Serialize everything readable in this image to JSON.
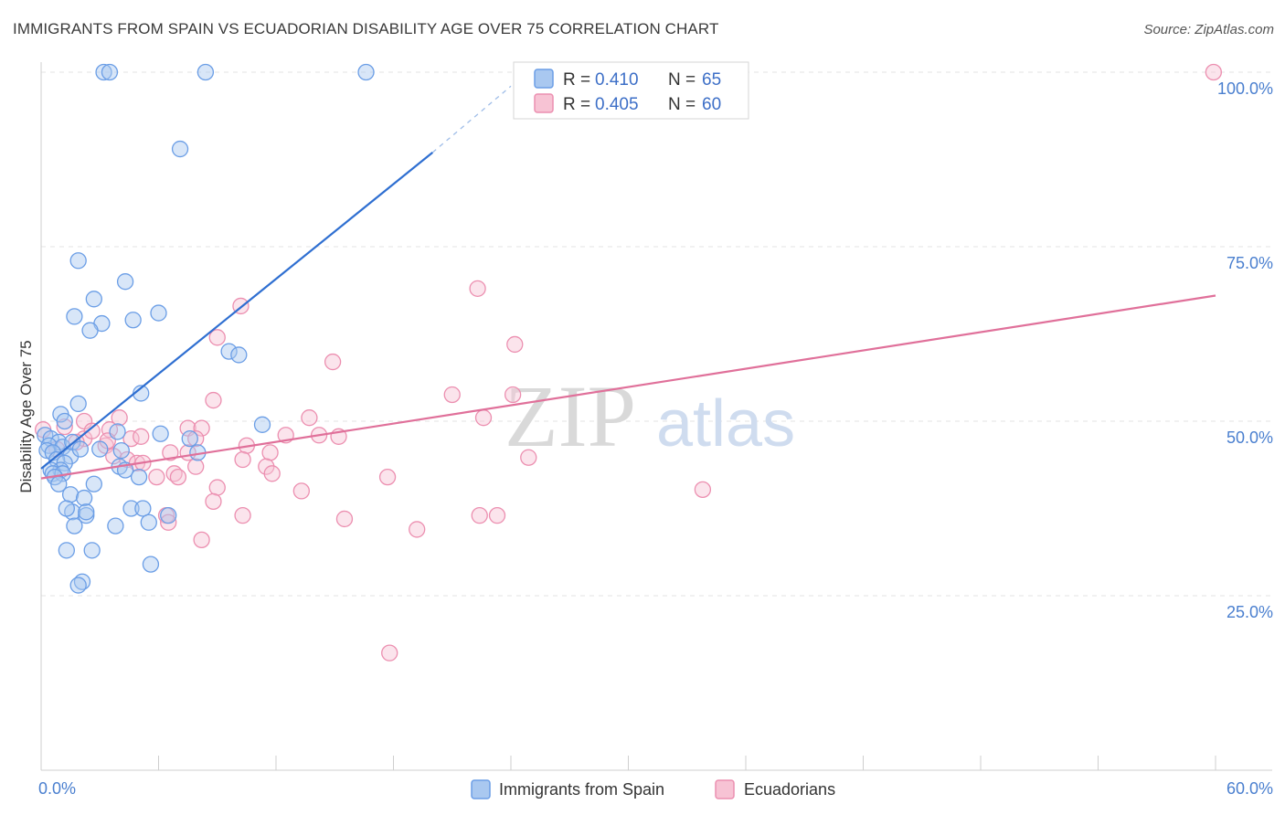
{
  "title": "IMMIGRANTS FROM SPAIN VS ECUADORIAN DISABILITY AGE OVER 75 CORRELATION CHART",
  "source": "Source: ZipAtlas.com",
  "watermark": {
    "zip": "ZIP",
    "atlas": "atlas"
  },
  "colors": {
    "blue": "#6b9ee6",
    "blue_fill": "#a9c8f0",
    "blue_line": "#2f6fd1",
    "pink": "#ec8fb0",
    "pink_fill": "#f7c3d4",
    "pink_line": "#e0709a"
  },
  "legend": {
    "r_label": "R =",
    "n_label": "N =",
    "blue": {
      "r": "0.410",
      "n": "65"
    },
    "pink": {
      "r": "0.405",
      "n": "60"
    }
  },
  "bottom_legend": {
    "blue": "Immigrants from Spain",
    "pink": "Ecuadorians"
  },
  "chart_data": {
    "type": "scatter",
    "title": "IMMIGRANTS FROM SPAIN VS ECUADORIAN DISABILITY AGE OVER 75 CORRELATION CHART",
    "xlabel": "",
    "ylabel": "Disability Age Over 75",
    "xlim": [
      0,
      60
    ],
    "ylim": [
      0,
      100
    ],
    "x_tick_labels": [
      "0.0%",
      "60.0%"
    ],
    "y_ticks": [
      25,
      50,
      75,
      100
    ],
    "y_tick_labels": [
      "25.0%",
      "50.0%",
      "75.0%",
      "100.0%"
    ],
    "grid": true,
    "series": [
      {
        "name": "Immigrants from Spain",
        "r": 0.41,
        "n": 65,
        "trend": {
          "x0": 0,
          "y0": 43.2,
          "x1": 20.0,
          "y1": 88.5,
          "dash_x1": 24.0,
          "dash_y1": 98.0
        },
        "points": [
          [
            3.2,
            100
          ],
          [
            3.5,
            100
          ],
          [
            8.4,
            100
          ],
          [
            16.6,
            100
          ],
          [
            7.1,
            89
          ],
          [
            1.9,
            73
          ],
          [
            4.3,
            70
          ],
          [
            2.7,
            67.5
          ],
          [
            1.7,
            65
          ],
          [
            3.1,
            64
          ],
          [
            4.7,
            64.5
          ],
          [
            6.0,
            65.5
          ],
          [
            2.5,
            63
          ],
          [
            9.6,
            60
          ],
          [
            10.1,
            59.5
          ],
          [
            5.1,
            54
          ],
          [
            1.9,
            52.5
          ],
          [
            1.0,
            51
          ],
          [
            1.2,
            50
          ],
          [
            11.3,
            49.5
          ],
          [
            0.2,
            48
          ],
          [
            0.5,
            47.5
          ],
          [
            0.9,
            47
          ],
          [
            0.4,
            46.5
          ],
          [
            1.1,
            46.3
          ],
          [
            0.3,
            45.8
          ],
          [
            3.0,
            46
          ],
          [
            0.6,
            45.5
          ],
          [
            1.5,
            45
          ],
          [
            0.8,
            44.5
          ],
          [
            1.2,
            44
          ],
          [
            4.0,
            43.5
          ],
          [
            1.0,
            43
          ],
          [
            0.5,
            43
          ],
          [
            0.6,
            42.5
          ],
          [
            1.1,
            42.5
          ],
          [
            0.7,
            42
          ],
          [
            4.3,
            43
          ],
          [
            5.0,
            42
          ],
          [
            0.9,
            41
          ],
          [
            2.7,
            41
          ],
          [
            1.5,
            39.5
          ],
          [
            2.2,
            39
          ],
          [
            1.6,
            37
          ],
          [
            2.3,
            36.5
          ],
          [
            1.3,
            37.5
          ],
          [
            2.3,
            37
          ],
          [
            4.6,
            37.5
          ],
          [
            5.2,
            37.5
          ],
          [
            6.5,
            36.5
          ],
          [
            1.7,
            35
          ],
          [
            5.5,
            35.5
          ],
          [
            3.8,
            35
          ],
          [
            1.3,
            31.5
          ],
          [
            2.6,
            31.5
          ],
          [
            5.6,
            29.5
          ],
          [
            2.1,
            27
          ],
          [
            1.9,
            26.5
          ],
          [
            7.6,
            47.5
          ],
          [
            3.9,
            48.5
          ],
          [
            1.6,
            47
          ],
          [
            2.0,
            46
          ],
          [
            4.1,
            45.8
          ],
          [
            6.1,
            48.2
          ],
          [
            8.0,
            45.5
          ]
        ]
      },
      {
        "name": "Ecuadorians",
        "r": 0.405,
        "n": 60,
        "trend": {
          "x0": 0,
          "y0": 41.8,
          "x1": 60,
          "y1": 68.0
        },
        "points": [
          [
            59.9,
            100
          ],
          [
            22.3,
            69
          ],
          [
            10.2,
            66.5
          ],
          [
            24.2,
            61
          ],
          [
            9.0,
            62
          ],
          [
            14.9,
            58.5
          ],
          [
            8.8,
            53
          ],
          [
            21.0,
            53.8
          ],
          [
            24.1,
            53.8
          ],
          [
            22.6,
            50.5
          ],
          [
            13.7,
            50.5
          ],
          [
            4.0,
            50.5
          ],
          [
            2.2,
            50
          ],
          [
            0.1,
            48.8
          ],
          [
            3.5,
            48.8
          ],
          [
            7.5,
            49
          ],
          [
            8.2,
            49
          ],
          [
            12.5,
            48
          ],
          [
            14.2,
            48
          ],
          [
            15.2,
            47.8
          ],
          [
            2.2,
            47.5
          ],
          [
            4.6,
            47.5
          ],
          [
            1.8,
            47
          ],
          [
            7.9,
            47.5
          ],
          [
            3.3,
            46.5
          ],
          [
            0.8,
            46
          ],
          [
            10.5,
            46.5
          ],
          [
            11.7,
            45.5
          ],
          [
            6.6,
            45.5
          ],
          [
            7.5,
            45.5
          ],
          [
            3.7,
            45
          ],
          [
            10.3,
            44.5
          ],
          [
            4.4,
            44.5
          ],
          [
            4.9,
            44
          ],
          [
            5.2,
            44
          ],
          [
            7.9,
            43.5
          ],
          [
            11.5,
            43.5
          ],
          [
            24.9,
            44.8
          ],
          [
            6.8,
            42.5
          ],
          [
            5.9,
            42
          ],
          [
            7.0,
            42
          ],
          [
            11.8,
            42.5
          ],
          [
            17.7,
            42
          ],
          [
            9.0,
            40.5
          ],
          [
            13.3,
            40
          ],
          [
            33.8,
            40.2
          ],
          [
            8.8,
            38.5
          ],
          [
            10.3,
            36.5
          ],
          [
            15.5,
            36
          ],
          [
            22.4,
            36.5
          ],
          [
            23.3,
            36.5
          ],
          [
            6.4,
            36.5
          ],
          [
            6.5,
            35.5
          ],
          [
            19.2,
            34.5
          ],
          [
            8.2,
            33
          ],
          [
            17.8,
            16.8
          ],
          [
            1.2,
            49.2
          ],
          [
            2.6,
            48.6
          ],
          [
            3.4,
            47.2
          ],
          [
            5.1,
            47.8
          ]
        ]
      }
    ]
  }
}
